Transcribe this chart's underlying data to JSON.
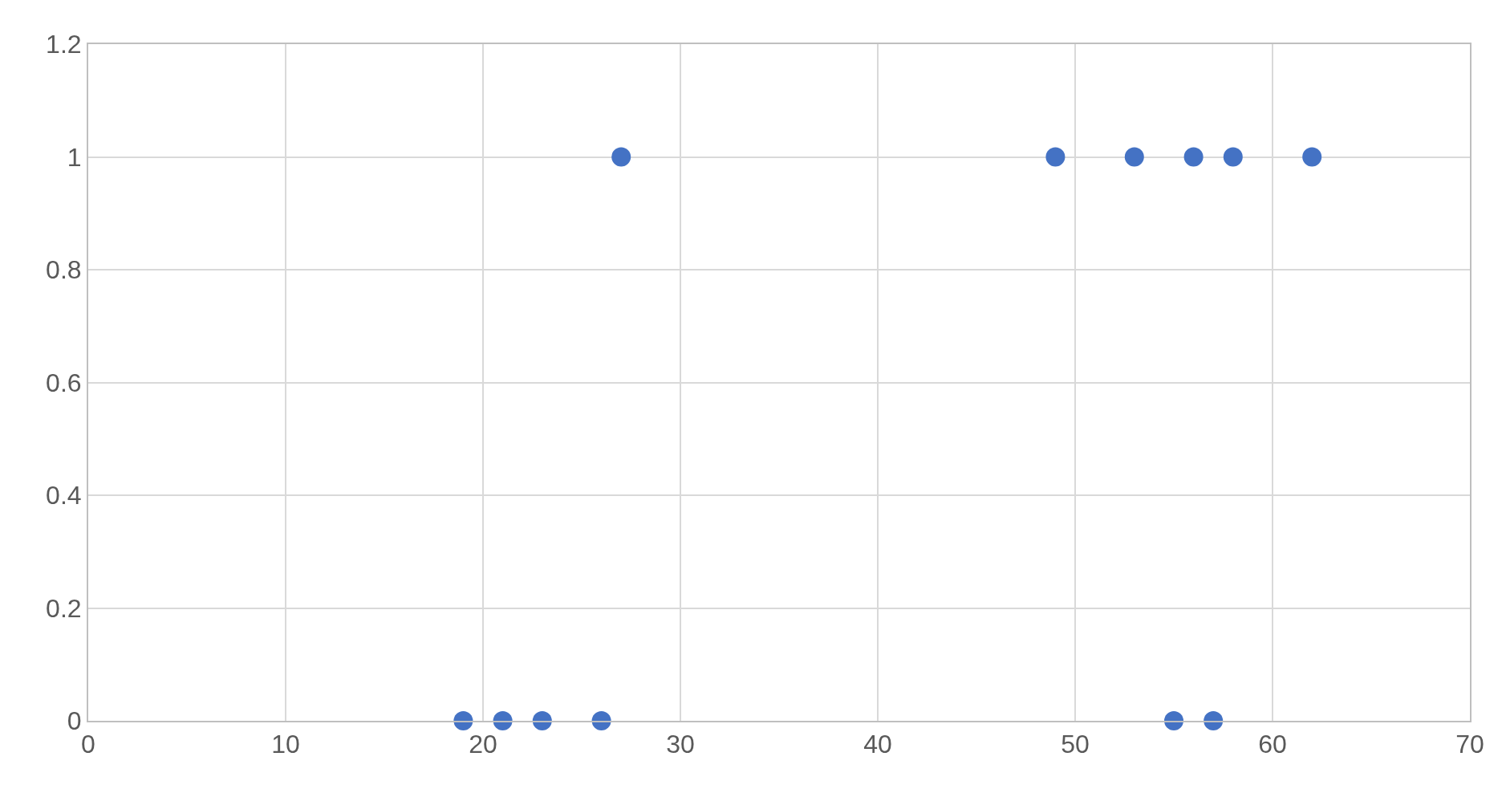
{
  "chart_data": {
    "type": "scatter",
    "color": "#4472c4",
    "marker": "circle",
    "grid": true,
    "x": [
      19,
      21,
      23,
      26,
      27,
      49,
      53,
      55,
      56,
      57,
      58,
      62
    ],
    "values": [
      0,
      0,
      0,
      0,
      1,
      1,
      1,
      0,
      1,
      0,
      1,
      1
    ],
    "xlim": [
      0,
      70
    ],
    "xticks": [
      0,
      10,
      20,
      30,
      40,
      50,
      60,
      70
    ],
    "ylim": [
      0,
      1.2
    ],
    "yticks": [
      0,
      0.2,
      0.4,
      0.6,
      0.8,
      1,
      1.2
    ]
  }
}
